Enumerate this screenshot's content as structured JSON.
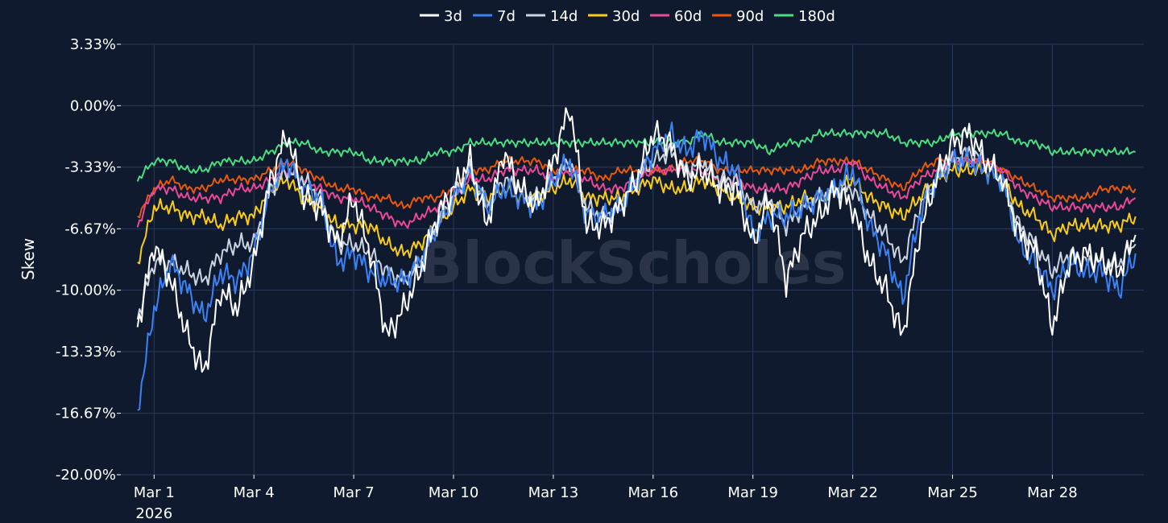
{
  "chart_data": {
    "type": "line",
    "watermark": "BlockScholes",
    "ylabel": "Skew",
    "ylim": [
      -20.0,
      3.33
    ],
    "y_ticks": [
      "3.33%",
      "0.00%",
      "-3.33%",
      "-6.67%",
      "-10.00%",
      "-13.33%",
      "-16.67%",
      "-20.00%"
    ],
    "y_tick_values": [
      3.33,
      0.0,
      -3.33,
      -6.67,
      -10.0,
      -13.33,
      -16.67,
      -20.0
    ],
    "xlim": [
      "2026-02-28T00:00",
      "2026-03-30T18:00"
    ],
    "x_ticks": [
      {
        "label": "Mar 1",
        "sub": "2026",
        "date": "2026-03-01"
      },
      {
        "label": "Mar 4",
        "sub": "",
        "date": "2026-03-04"
      },
      {
        "label": "Mar 7",
        "sub": "",
        "date": "2026-03-07"
      },
      {
        "label": "Mar 10",
        "sub": "",
        "date": "2026-03-10"
      },
      {
        "label": "Mar 13",
        "sub": "",
        "date": "2026-03-13"
      },
      {
        "label": "Mar 16",
        "sub": "",
        "date": "2026-03-16"
      },
      {
        "label": "Mar 19",
        "sub": "",
        "date": "2026-03-19"
      },
      {
        "label": "Mar 22",
        "sub": "",
        "date": "2026-03-22"
      },
      {
        "label": "Mar 25",
        "sub": "",
        "date": "2026-03-25"
      },
      {
        "label": "Mar 28",
        "sub": "",
        "date": "2026-03-28"
      }
    ],
    "grid": true,
    "legend_position": "top-center",
    "x": [
      "2026-02-28T12:00",
      "2026-03-01T00:00",
      "2026-03-01T12:00",
      "2026-03-02T00:00",
      "2026-03-02T12:00",
      "2026-03-03T00:00",
      "2026-03-03T12:00",
      "2026-03-04T00:00",
      "2026-03-04T12:00",
      "2026-03-05T00:00",
      "2026-03-05T12:00",
      "2026-03-06T00:00",
      "2026-03-06T12:00",
      "2026-03-07T00:00",
      "2026-03-07T12:00",
      "2026-03-08T00:00",
      "2026-03-08T12:00",
      "2026-03-09T00:00",
      "2026-03-09T12:00",
      "2026-03-10T00:00",
      "2026-03-10T12:00",
      "2026-03-11T00:00",
      "2026-03-11T12:00",
      "2026-03-12T00:00",
      "2026-03-12T12:00",
      "2026-03-13T00:00",
      "2026-03-13T12:00",
      "2026-03-14T00:00",
      "2026-03-14T12:00",
      "2026-03-15T00:00",
      "2026-03-15T12:00",
      "2026-03-16T00:00",
      "2026-03-16T12:00",
      "2026-03-17T00:00",
      "2026-03-17T12:00",
      "2026-03-18T00:00",
      "2026-03-18T12:00",
      "2026-03-19T00:00",
      "2026-03-19T12:00",
      "2026-03-20T00:00",
      "2026-03-20T12:00",
      "2026-03-21T00:00",
      "2026-03-21T12:00",
      "2026-03-22T00:00",
      "2026-03-22T12:00",
      "2026-03-23T00:00",
      "2026-03-23T12:00",
      "2026-03-24T00:00",
      "2026-03-24T12:00",
      "2026-03-25T00:00",
      "2026-03-25T12:00",
      "2026-03-26T00:00",
      "2026-03-26T12:00",
      "2026-03-27T00:00",
      "2026-03-27T12:00",
      "2026-03-28T00:00",
      "2026-03-28T12:00",
      "2026-03-29T00:00",
      "2026-03-29T12:00",
      "2026-03-30T00:00",
      "2026-03-30T12:00"
    ],
    "series": [
      {
        "name": "3d",
        "color": "#ffffff",
        "values": [
          -12.0,
          -7.5,
          -9.5,
          -12.5,
          -14.5,
          -10.0,
          -11.0,
          -8.5,
          -4.0,
          -1.5,
          -5.0,
          -5.5,
          -7.5,
          -5.0,
          -8.0,
          -12.5,
          -11.0,
          -9.0,
          -6.0,
          -4.5,
          -3.0,
          -6.5,
          -2.5,
          -4.5,
          -5.5,
          -3.0,
          0.0,
          -6.5,
          -6.5,
          -5.5,
          -4.0,
          -1.5,
          -2.0,
          -4.0,
          -3.5,
          -4.5,
          -4.5,
          -7.5,
          -5.0,
          -9.5,
          -7.0,
          -6.0,
          -4.5,
          -5.5,
          -8.5,
          -10.0,
          -12.5,
          -7.0,
          -4.0,
          -2.0,
          -1.5,
          -3.0,
          -4.0,
          -7.0,
          -8.0,
          -12.0,
          -8.5,
          -8.0,
          -8.5,
          -9.0,
          -7.0
        ]
      },
      {
        "name": "7d",
        "color": "#3b82f6",
        "values": [
          -16.5,
          -11.0,
          -8.5,
          -10.0,
          -11.5,
          -9.0,
          -9.5,
          -8.0,
          -4.5,
          -3.0,
          -4.5,
          -5.0,
          -8.5,
          -8.0,
          -9.0,
          -9.5,
          -9.5,
          -8.5,
          -6.5,
          -5.0,
          -3.5,
          -5.5,
          -4.5,
          -5.0,
          -5.5,
          -4.0,
          -3.0,
          -6.0,
          -6.0,
          -5.5,
          -4.0,
          -2.5,
          -1.5,
          -2.5,
          -1.5,
          -3.0,
          -3.5,
          -7.0,
          -6.0,
          -6.0,
          -5.5,
          -5.0,
          -4.5,
          -3.5,
          -6.5,
          -8.0,
          -10.5,
          -6.0,
          -4.0,
          -3.0,
          -3.0,
          -3.5,
          -4.0,
          -7.5,
          -8.5,
          -10.0,
          -8.5,
          -9.0,
          -9.0,
          -10.0,
          -8.0
        ]
      },
      {
        "name": "14d",
        "color": "#cbd5e1",
        "values": [
          -11.5,
          -8.5,
          -8.5,
          -9.0,
          -9.5,
          -8.0,
          -7.5,
          -7.5,
          -4.5,
          -3.5,
          -4.0,
          -5.0,
          -7.5,
          -7.5,
          -8.0,
          -9.0,
          -9.5,
          -8.5,
          -6.5,
          -5.0,
          -3.5,
          -5.5,
          -4.0,
          -4.5,
          -5.0,
          -4.0,
          -3.0,
          -5.5,
          -6.0,
          -5.5,
          -4.0,
          -3.0,
          -2.5,
          -3.5,
          -3.0,
          -4.0,
          -4.0,
          -5.5,
          -5.0,
          -6.5,
          -5.5,
          -5.0,
          -4.5,
          -4.5,
          -6.0,
          -7.0,
          -8.5,
          -5.5,
          -4.0,
          -3.0,
          -2.5,
          -3.0,
          -4.0,
          -6.5,
          -7.5,
          -9.0,
          -8.0,
          -8.5,
          -8.5,
          -8.5,
          -7.5
        ]
      },
      {
        "name": "30d",
        "color": "#facc15",
        "values": [
          -8.5,
          -5.5,
          -5.5,
          -6.0,
          -6.0,
          -6.5,
          -6.0,
          -6.0,
          -4.5,
          -4.0,
          -5.0,
          -5.5,
          -6.5,
          -6.5,
          -6.5,
          -7.5,
          -8.0,
          -7.5,
          -6.5,
          -5.5,
          -4.5,
          -5.0,
          -4.5,
          -5.0,
          -5.0,
          -4.5,
          -4.0,
          -5.0,
          -5.0,
          -5.0,
          -4.5,
          -4.0,
          -4.5,
          -4.5,
          -4.0,
          -4.5,
          -5.0,
          -5.5,
          -5.5,
          -5.5,
          -5.0,
          -5.0,
          -4.5,
          -4.0,
          -5.0,
          -5.5,
          -6.0,
          -5.0,
          -4.0,
          -3.5,
          -3.5,
          -3.5,
          -4.0,
          -5.5,
          -6.0,
          -7.0,
          -6.5,
          -6.5,
          -6.5,
          -6.5,
          -6.0
        ]
      },
      {
        "name": "60d",
        "color": "#ec4899",
        "values": [
          -6.5,
          -4.5,
          -4.5,
          -5.0,
          -5.0,
          -5.0,
          -4.5,
          -4.5,
          -4.0,
          -3.5,
          -4.0,
          -4.5,
          -5.0,
          -5.0,
          -5.5,
          -6.0,
          -6.5,
          -6.0,
          -5.5,
          -5.0,
          -4.0,
          -4.0,
          -3.5,
          -3.5,
          -3.5,
          -4.0,
          -3.5,
          -4.0,
          -4.5,
          -4.5,
          -4.0,
          -3.5,
          -3.5,
          -3.5,
          -3.5,
          -4.0,
          -4.0,
          -4.5,
          -4.5,
          -4.5,
          -4.0,
          -3.5,
          -3.5,
          -3.0,
          -4.0,
          -4.5,
          -5.0,
          -4.0,
          -3.5,
          -3.0,
          -3.0,
          -3.0,
          -3.5,
          -4.5,
          -5.0,
          -5.5,
          -5.5,
          -5.5,
          -5.5,
          -5.5,
          -5.0
        ]
      },
      {
        "name": "90d",
        "color": "#ea580c",
        "values": [
          -6.0,
          -4.5,
          -4.0,
          -4.5,
          -4.5,
          -4.0,
          -4.0,
          -4.0,
          -3.5,
          -3.0,
          -3.5,
          -4.0,
          -4.5,
          -4.5,
          -5.0,
          -5.0,
          -5.5,
          -5.0,
          -5.0,
          -4.5,
          -3.5,
          -3.5,
          -3.0,
          -3.0,
          -3.0,
          -3.5,
          -3.5,
          -3.5,
          -4.0,
          -3.5,
          -3.5,
          -3.5,
          -3.5,
          -3.0,
          -3.0,
          -3.5,
          -3.5,
          -3.5,
          -3.5,
          -3.5,
          -3.5,
          -3.0,
          -3.0,
          -3.0,
          -3.5,
          -4.0,
          -4.5,
          -3.5,
          -3.0,
          -3.0,
          -3.0,
          -3.0,
          -3.5,
          -4.0,
          -4.5,
          -5.0,
          -5.0,
          -5.0,
          -4.5,
          -4.5,
          -4.5
        ]
      },
      {
        "name": "180d",
        "color": "#4ade80",
        "values": [
          -4.0,
          -3.0,
          -3.0,
          -3.5,
          -3.5,
          -3.0,
          -3.0,
          -3.0,
          -2.5,
          -2.0,
          -2.0,
          -2.5,
          -2.5,
          -2.5,
          -3.0,
          -3.0,
          -3.0,
          -3.0,
          -2.5,
          -2.5,
          -2.0,
          -2.0,
          -2.0,
          -2.0,
          -2.0,
          -2.0,
          -2.0,
          -2.0,
          -2.0,
          -2.0,
          -2.0,
          -2.0,
          -2.0,
          -2.0,
          -1.5,
          -2.0,
          -2.0,
          -2.0,
          -2.5,
          -2.0,
          -2.0,
          -1.5,
          -1.5,
          -1.5,
          -1.5,
          -1.5,
          -2.0,
          -2.0,
          -2.0,
          -1.5,
          -1.5,
          -1.5,
          -1.5,
          -2.0,
          -2.0,
          -2.5,
          -2.5,
          -2.5,
          -2.5,
          -2.5,
          -2.5
        ]
      }
    ]
  }
}
